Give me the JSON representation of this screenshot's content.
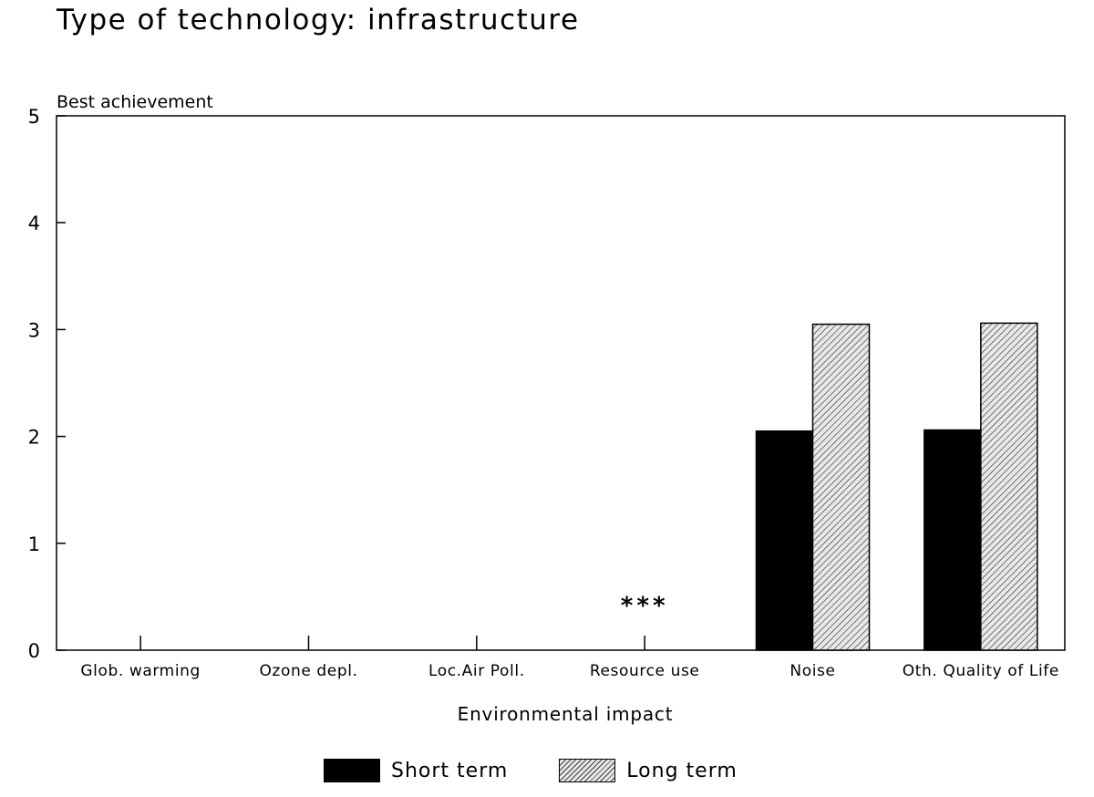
{
  "chart_data": {
    "type": "bar",
    "title": "Type of technology: infrastructure",
    "ylabel": "Best achievement",
    "xlabel": "Environmental impact",
    "ylim": [
      0,
      5
    ],
    "yticks": [
      "0",
      "1",
      "2",
      "3",
      "4",
      "5"
    ],
    "categories": [
      "Glob. warming",
      "Ozone depl.",
      "Loc.Air Poll.",
      "Resource use",
      "Noise",
      "Oth. Quality of Life"
    ],
    "series": [
      {
        "name": "Short term",
        "values": [
          0,
          0,
          0,
          0,
          2.05,
          2.06
        ]
      },
      {
        "name": "Long term",
        "values": [
          0,
          0,
          0,
          0,
          3.05,
          3.06
        ]
      }
    ],
    "annotations": [
      {
        "text": "***",
        "category": "Resource use",
        "y": 0.45
      }
    ],
    "legend_position": "bottom",
    "grid": false,
    "colors": {
      "short_term": "#000000",
      "long_term_hatch": "#444444"
    }
  }
}
